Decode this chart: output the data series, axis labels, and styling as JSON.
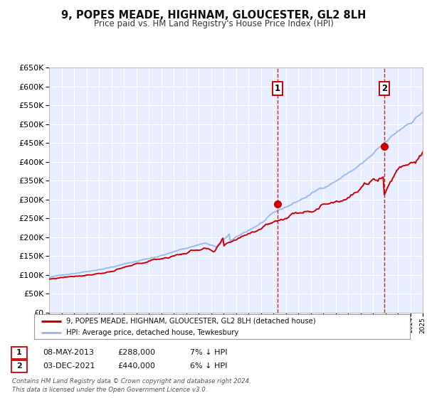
{
  "title": "9, POPES MEADE, HIGHNAM, GLOUCESTER, GL2 8LH",
  "subtitle": "Price paid vs. HM Land Registry's House Price Index (HPI)",
  "legend_line1": "9, POPES MEADE, HIGHNAM, GLOUCESTER, GL2 8LH (detached house)",
  "legend_line2": "HPI: Average price, detached house, Tewkesbury",
  "annotation1_label": "1",
  "annotation1_date": "08-MAY-2013",
  "annotation1_price": "£288,000",
  "annotation1_hpi": "7% ↓ HPI",
  "annotation1_year": 2013.35,
  "annotation1_value": 288000,
  "annotation2_label": "2",
  "annotation2_date": "03-DEC-2021",
  "annotation2_price": "£440,000",
  "annotation2_hpi": "6% ↓ HPI",
  "annotation2_year": 2021.92,
  "annotation2_value": 440000,
  "xmin": 1995,
  "xmax": 2025,
  "ymin": 0,
  "ymax": 650000,
  "yticks": [
    0,
    50000,
    100000,
    150000,
    200000,
    250000,
    300000,
    350000,
    400000,
    450000,
    500000,
    550000,
    600000,
    650000
  ],
  "background_color": "#ffffff",
  "plot_bg_color": "#e8eeff",
  "grid_color": "#ffffff",
  "red_line_color": "#cc0000",
  "blue_line_color": "#99bbee",
  "dashed_vline_color": "#cc0000",
  "footer_text": "Contains HM Land Registry data © Crown copyright and database right 2024.\nThis data is licensed under the Open Government Licence v3.0."
}
